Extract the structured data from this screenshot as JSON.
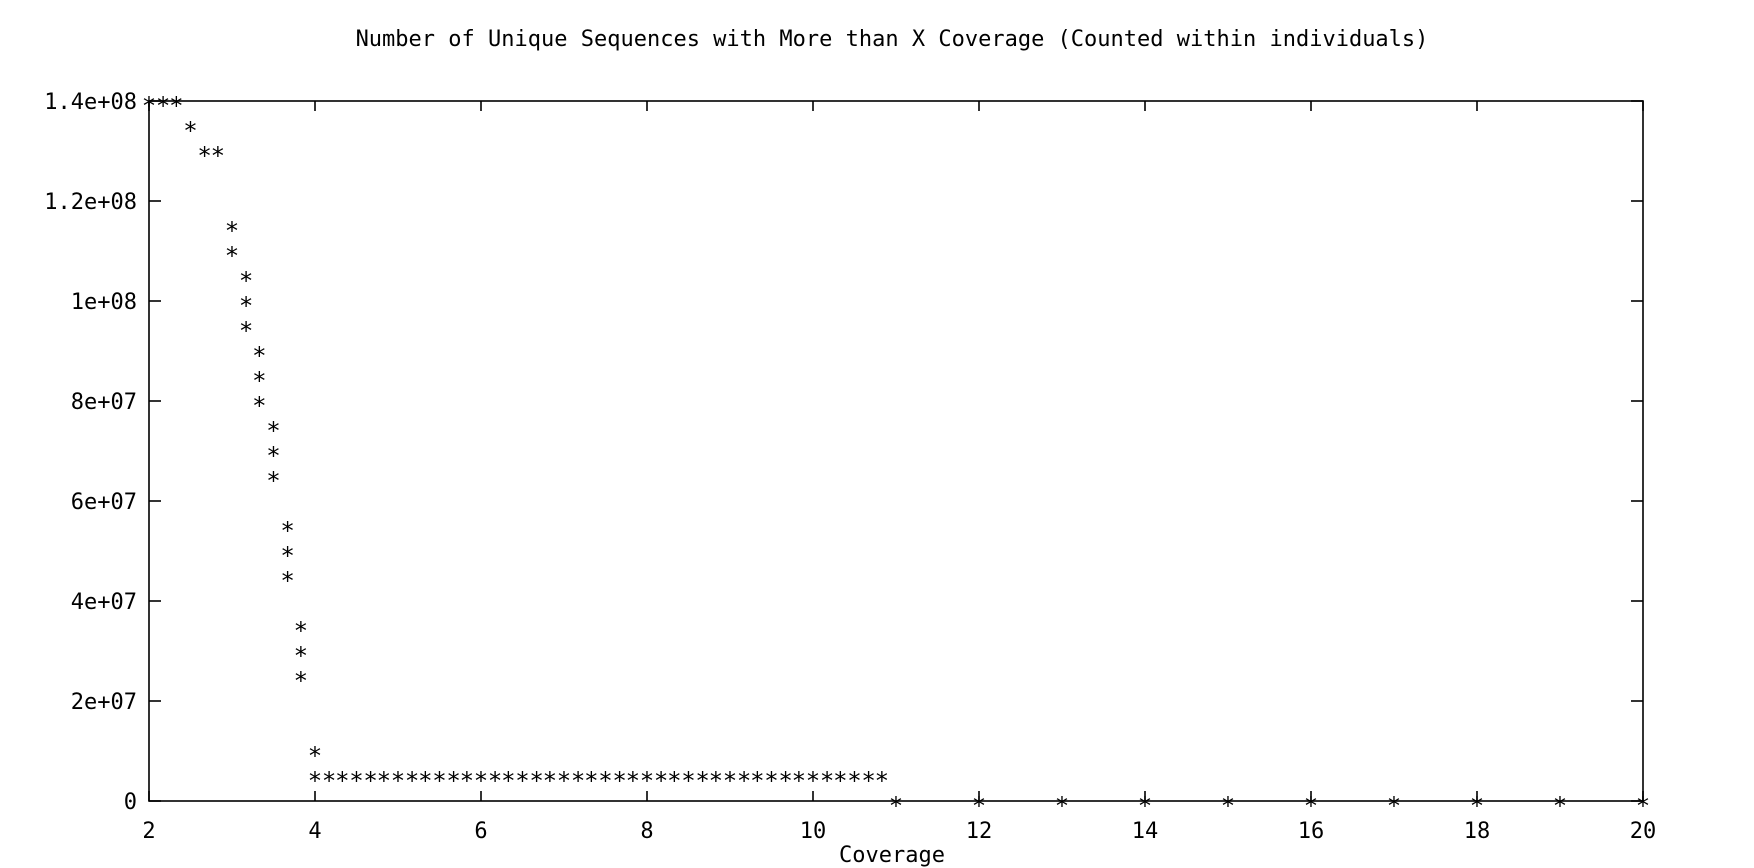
{
  "chart_data": {
    "type": "scatter",
    "title": "Number of Unique Sequences with More than X Coverage (Counted within individuals)",
    "xlabel": "Coverage",
    "ylabel": "",
    "xlim": [
      2,
      20
    ],
    "ylim": [
      0,
      140000000
    ],
    "x_ticks": [
      "2",
      "4",
      "6",
      "8",
      "10",
      "12",
      "14",
      "16",
      "18",
      "20"
    ],
    "y_ticks": [
      "0",
      "2e+07",
      "4e+07",
      "6e+07",
      "8e+07",
      "1e+08",
      "1.2e+08",
      "1.4e+08"
    ],
    "grid": false,
    "legend": "none",
    "marker": "*",
    "series": [
      {
        "x": [
          2.0,
          2.17,
          2.33,
          2.5,
          2.67,
          2.83,
          3.0,
          3.0,
          3.17,
          3.17,
          3.17,
          3.33,
          3.33,
          3.33,
          3.5,
          3.5,
          3.5,
          3.67,
          3.67,
          3.67,
          3.83,
          3.83,
          3.83,
          4.0,
          4.0,
          4.17,
          4.33,
          4.5,
          4.67,
          4.83,
          5.0,
          5.17,
          5.33,
          5.5,
          5.67,
          5.83,
          6.0,
          6.17,
          6.33,
          6.5,
          6.67,
          6.83,
          7.0,
          7.17,
          7.33,
          7.5,
          7.67,
          7.83,
          8.0,
          8.17,
          8.33,
          8.5,
          8.67,
          8.83,
          9.0,
          9.17,
          9.33,
          9.5,
          9.67,
          9.83,
          10.0,
          10.17,
          10.33,
          10.5,
          10.67,
          10.83,
          11.0,
          12.0,
          13.0,
          14.0,
          15.0,
          16.0,
          17.0,
          18.0,
          19.0,
          20.0
        ],
        "y": [
          140000000,
          140000000,
          140000000,
          135000000,
          130000000,
          130000000,
          115000000,
          110000000,
          105000000,
          100000000,
          95000000,
          90000000,
          85000000,
          80000000,
          75000000,
          70000000,
          65000000,
          55000000,
          50000000,
          45000000,
          35000000,
          30000000,
          25000000,
          10000000,
          5000000,
          5000000,
          5000000,
          5000000,
          5000000,
          5000000,
          5000000,
          5000000,
          5000000,
          5000000,
          5000000,
          5000000,
          5000000,
          5000000,
          5000000,
          5000000,
          5000000,
          5000000,
          5000000,
          5000000,
          5000000,
          5000000,
          5000000,
          5000000,
          5000000,
          5000000,
          5000000,
          5000000,
          5000000,
          5000000,
          5000000,
          5000000,
          5000000,
          5000000,
          5000000,
          5000000,
          5000000,
          5000000,
          5000000,
          5000000,
          5000000,
          5000000,
          0,
          0,
          0,
          0,
          0,
          0,
          0,
          0,
          0,
          0
        ]
      }
    ]
  }
}
